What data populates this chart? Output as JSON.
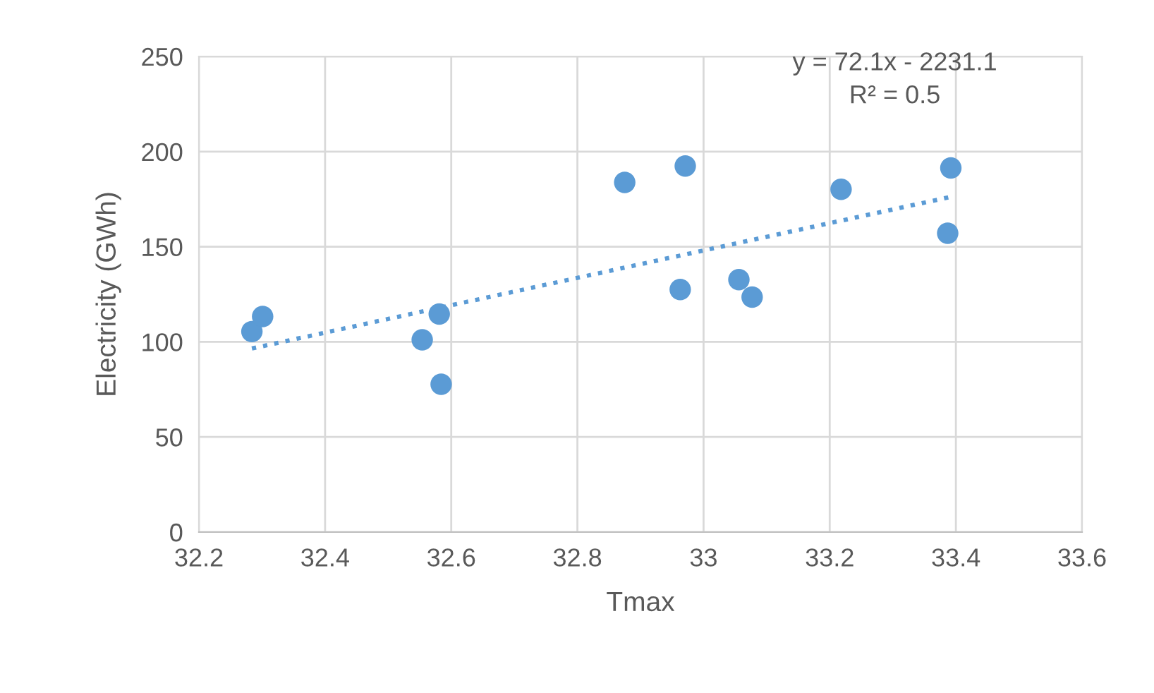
{
  "chart_data": {
    "type": "scatter",
    "xlabel": "Tmax",
    "ylabel": "Electricity (GWh)",
    "annotations": [
      "y = 72.1x - 2231.1\nR² = 0.5"
    ],
    "series": [
      {
        "color": "#5b9bd5",
        "marker": "circle",
        "x": [
          32.284,
          32.301,
          32.554,
          32.581,
          32.584,
          32.875,
          32.971,
          32.963,
          33.056,
          33.077,
          33.218,
          33.392,
          33.387
        ],
        "values": [
          105.4,
          113.3,
          101.1,
          114.6,
          77.7,
          183.8,
          192.4,
          127.5,
          132.7,
          123.5,
          180.2,
          191.4,
          157.1
        ]
      },
      {
        "type": "line",
        "color": "#5b9bd5",
        "line_style": "dotted",
        "x": [
          32.284,
          33.392
        ],
        "values": [
          96.5,
          176.2
        ]
      }
    ],
    "xlim": [
      32.2,
      33.6
    ],
    "xticks": [
      32.2,
      32.4,
      32.6,
      32.8,
      33,
      33.2,
      33.4,
      33.6
    ],
    "ylim": [
      0,
      250
    ],
    "yticks": [
      0,
      50,
      100,
      150,
      200,
      250
    ],
    "grid": true
  }
}
